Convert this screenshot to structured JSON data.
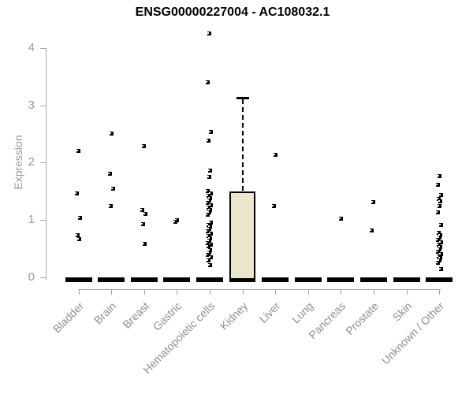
{
  "title": "ENSG00000227004 - AC108032.1",
  "chart_data": {
    "type": "boxplot",
    "title": "ENSG00000227004 - AC108032.1",
    "ylabel": "Expression",
    "xlabel": "",
    "yticks": [
      0,
      1,
      2,
      3,
      4
    ],
    "ylim": [
      0,
      4.3
    ],
    "grid": false,
    "legend": "none",
    "categories": [
      "Bladder",
      "Brain",
      "Breast",
      "Gastric",
      "Hematopoietic cells",
      "Kidney",
      "Liver",
      "Lung",
      "Pancreas",
      "Prostate",
      "Skin",
      "Unknown / Other"
    ],
    "boxes": [
      {
        "category": "Bladder",
        "low": 0,
        "q1": 0,
        "median": 0,
        "q3": 0,
        "high": 0
      },
      {
        "category": "Brain",
        "low": 0,
        "q1": 0,
        "median": 0,
        "q3": 0,
        "high": 0
      },
      {
        "category": "Breast",
        "low": 0,
        "q1": 0,
        "median": 0,
        "q3": 0,
        "high": 0
      },
      {
        "category": "Gastric",
        "low": 0,
        "q1": 0,
        "median": 0,
        "q3": 0,
        "high": 0
      },
      {
        "category": "Hematopoietic cells",
        "low": 0,
        "q1": 0,
        "median": 0,
        "q3": 0,
        "high": 0
      },
      {
        "category": "Kidney",
        "low": 0,
        "q1": 0,
        "median": 0,
        "q3": 1.5,
        "high": 3.15
      },
      {
        "category": "Liver",
        "low": 0,
        "q1": 0,
        "median": 0,
        "q3": 0,
        "high": 0
      },
      {
        "category": "Lung",
        "low": 0,
        "q1": 0,
        "median": 0,
        "q3": 0,
        "high": 0
      },
      {
        "category": "Pancreas",
        "low": 0,
        "q1": 0,
        "median": 0,
        "q3": 0,
        "high": 0
      },
      {
        "category": "Prostate",
        "low": 0,
        "q1": 0,
        "median": 0,
        "q3": 0,
        "high": 0
      },
      {
        "category": "Skin",
        "low": 0,
        "q1": 0,
        "median": 0,
        "q3": 0,
        "high": 0
      },
      {
        "category": "Unknown / Other",
        "low": 0,
        "q1": 0,
        "median": 0,
        "q3": 0,
        "high": 0
      }
    ],
    "outliers": [
      {
        "category": "Bladder",
        "values": [
          2.21,
          1.46,
          1.04,
          0.74,
          0.67
        ]
      },
      {
        "category": "Brain",
        "values": [
          2.51,
          1.81,
          1.55,
          1.24
        ]
      },
      {
        "category": "Breast",
        "values": [
          2.29,
          1.18,
          1.1,
          0.93,
          0.58
        ]
      },
      {
        "category": "Gastric",
        "values": [
          1.0,
          0.97
        ]
      },
      {
        "category": "Hematopoietic cells",
        "values": [
          4.25,
          3.4,
          2.53,
          2.38,
          1.86,
          1.75,
          1.5,
          1.46,
          1.42,
          1.38,
          1.34,
          1.3,
          1.26,
          1.22,
          1.17,
          1.13,
          1.09,
          0.96,
          0.92,
          0.88,
          0.84,
          0.8,
          0.76,
          0.72,
          0.68,
          0.64,
          0.6,
          0.57,
          0.54,
          0.47,
          0.43,
          0.39,
          0.35,
          0.3,
          0.21
        ]
      },
      {
        "category": "Kidney",
        "values": []
      },
      {
        "category": "Liver",
        "values": [
          2.13,
          1.24
        ]
      },
      {
        "category": "Lung",
        "values": []
      },
      {
        "category": "Pancreas",
        "values": [
          1.03
        ]
      },
      {
        "category": "Prostate",
        "values": [
          1.31,
          0.82
        ]
      },
      {
        "category": "Skin",
        "values": []
      },
      {
        "category": "Unknown / Other",
        "values": [
          1.76,
          1.61,
          1.44,
          1.37,
          1.33,
          1.24,
          1.13,
          0.92,
          0.77,
          0.73,
          0.69,
          0.65,
          0.61,
          0.57,
          0.53,
          0.49,
          0.45,
          0.41,
          0.37,
          0.33,
          0.3,
          0.26,
          0.14
        ]
      }
    ],
    "colors": {
      "box_fill": "#ECE7CB",
      "box_stroke": "#000000",
      "point": "#000000",
      "axis_line": "#a4a4a4",
      "tick_label": "#999999",
      "category_label": "#8f8f8f",
      "title": "#000000",
      "background": "#ffffff"
    }
  }
}
